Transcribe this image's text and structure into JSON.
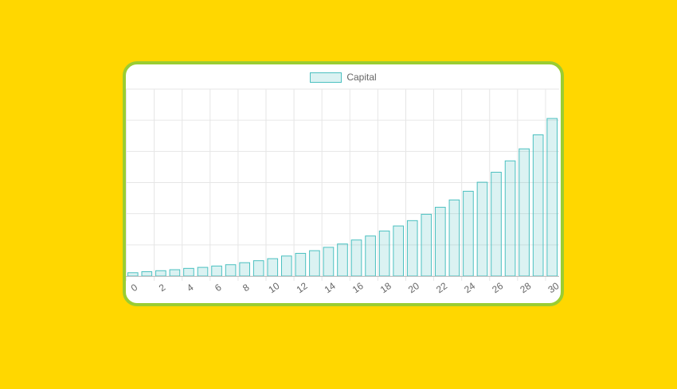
{
  "chart_data": {
    "type": "bar",
    "series": [
      {
        "name": "Capital",
        "values": [
          1.0,
          1.3,
          1.6,
          1.9,
          2.3,
          2.6,
          3.0,
          3.4,
          4.0,
          4.6,
          5.2,
          6.0,
          6.8,
          7.6,
          8.6,
          9.6,
          10.8,
          12.0,
          13.5,
          15.0,
          16.6,
          18.5,
          20.6,
          22.8,
          25.4,
          28.1,
          31.1,
          34.5,
          38.1,
          42.3,
          47.2
        ]
      }
    ],
    "categories": [
      "0",
      "1",
      "2",
      "3",
      "4",
      "5",
      "6",
      "7",
      "8",
      "9",
      "10",
      "11",
      "12",
      "13",
      "14",
      "15",
      "16",
      "17",
      "18",
      "19",
      "20",
      "21",
      "22",
      "23",
      "24",
      "25",
      "26",
      "27",
      "28",
      "29",
      "30"
    ],
    "tick_labels": [
      "0",
      "2",
      "4",
      "6",
      "8",
      "10",
      "12",
      "14",
      "16",
      "18",
      "20",
      "22",
      "24",
      "26",
      "28",
      "30"
    ],
    "ylim": [
      0,
      56
    ],
    "grid": true,
    "legend_position": "top",
    "colors": {
      "bar_fill": "rgba(75, 192, 192, 0.2)",
      "bar_stroke": "#4bc0c0",
      "grid": "#e6e6e6",
      "tick_text": "#666666"
    }
  }
}
